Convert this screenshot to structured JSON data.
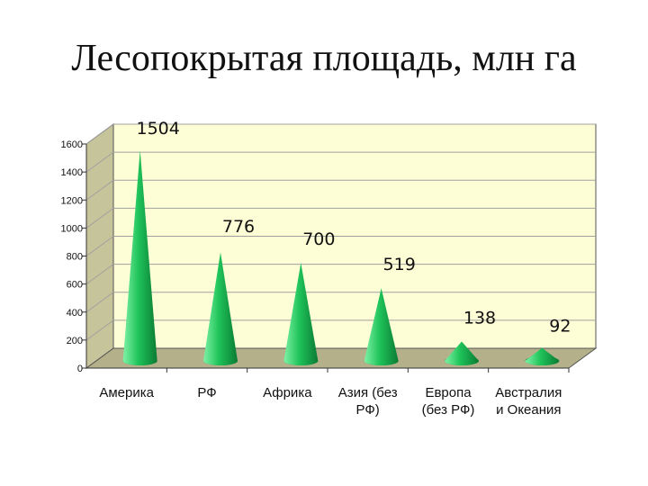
{
  "title": "Лесопокрытая площадь, млн га",
  "colors": {
    "wall": "#fefed6",
    "side_wall": "#c6c49a",
    "floor": "#b3b08a",
    "grid": "#a0a0a0",
    "cone_light": "#7ff2a5",
    "cone_mid": "#1fc35a",
    "cone_dark": "#0b7a33"
  },
  "chart_data": {
    "type": "bar",
    "shape": "cone-3d",
    "title": "Лесопокрытая площадь, млн га",
    "categories": [
      [
        "Америка"
      ],
      [
        "РФ"
      ],
      [
        "Африка"
      ],
      [
        "Азия (без",
        "РФ)"
      ],
      [
        "Европа",
        "(без РФ)"
      ],
      [
        "Австралия",
        "и Океания"
      ]
    ],
    "values": [
      1504,
      776,
      700,
      519,
      138,
      92
    ],
    "data_labels": [
      "1504",
      "776",
      "700",
      "519",
      "138",
      "92"
    ],
    "yticks": [
      "0",
      "200",
      "400",
      "600",
      "800",
      "1000",
      "1200",
      "1400",
      "1600"
    ],
    "ylim": [
      0,
      1600
    ],
    "xlabel": "",
    "ylabel": "",
    "grid": true,
    "legend": "none"
  }
}
